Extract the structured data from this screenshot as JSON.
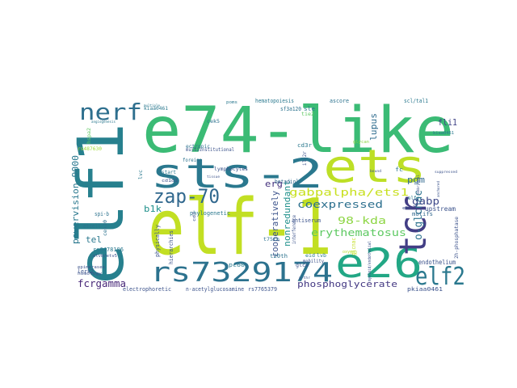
{
  "words": [
    {
      "text": "elf-1",
      "color": "#c2df23"
    },
    {
      "text": "e74-like",
      "color": "#3bbb75"
    },
    {
      "text": "elf1",
      "color": "#27808e"
    },
    {
      "text": "sts-2",
      "color": "#2a788e"
    },
    {
      "text": "ets",
      "color": "#bddf26"
    },
    {
      "text": "e26",
      "color": "#22a785"
    },
    {
      "text": "tcr",
      "color": "#433e85"
    },
    {
      "text": "rs7329174",
      "color": "#2c728e"
    },
    {
      "text": "elf2",
      "color": "#2a788e"
    },
    {
      "text": "nerf",
      "color": "#2e6f8e"
    },
    {
      "text": "zap-70",
      "color": "#31688e"
    },
    {
      "text": "gabpalpha/ets1",
      "color": "#c8e020"
    },
    {
      "text": "coexpressed",
      "color": "#2d708e"
    },
    {
      "text": "98-kda",
      "color": "#8ed645"
    },
    {
      "text": "erythematosus",
      "color": "#5ec962"
    },
    {
      "text": "o-glcnac",
      "color": "#2c728e"
    },
    {
      "text": "gabp",
      "color": "#3e4989"
    },
    {
      "text": "phosphoglycerate",
      "color": "#443983"
    },
    {
      "text": "fcrgamma",
      "color": "#482878"
    },
    {
      "text": "lupus",
      "color": "#2f6c8e"
    },
    {
      "text": "pgm",
      "color": "#31688e"
    },
    {
      "text": "fli1",
      "color": "#414487"
    },
    {
      "text": "powervision-9000",
      "color": "#2a788e"
    },
    {
      "text": "nonredundant",
      "color": "#21918c"
    },
    {
      "text": "cooperatively",
      "color": "#3b528b"
    },
    {
      "text": "b1k",
      "color": "#21918c"
    },
    {
      "text": "erg",
      "color": "#46337e"
    },
    {
      "text": "tel",
      "color": "#2a788e"
    },
    {
      "text": "endothelium",
      "color": "#3b528b"
    },
    {
      "text": "upstream",
      "color": "#3b528b"
    },
    {
      "text": "motifs",
      "color": "#31688e"
    },
    {
      "text": "sf3a120",
      "color": "#2c728e"
    },
    {
      "text": "betadiol",
      "color": "#31688e"
    },
    {
      "text": "hierarchies",
      "color": "#3b528b"
    },
    {
      "text": "phylogenetic",
      "color": "#2a788e"
    },
    {
      "text": "pc60",
      "color": "#2a788e"
    },
    {
      "text": "t20th",
      "color": "#2c728e"
    },
    {
      "text": "lymphocytes",
      "color": "#3b528b"
    },
    {
      "text": "ectropic",
      "color": "#2c728e"
    },
    {
      "text": "start",
      "color": "#2a788e"
    },
    {
      "text": "hematopoiesis",
      "color": "#2a788e"
    },
    {
      "text": "ascore",
      "color": "#2c728e"
    },
    {
      "text": "cd3r",
      "color": "#2a788e"
    },
    {
      "text": "sle",
      "color": "#2a788e"
    },
    {
      "text": "kiaa0461",
      "color": "#2a788e"
    },
    {
      "text": "scl/tal1",
      "color": "#2a788e"
    },
    {
      "text": "multiinstitutional",
      "color": "#3b528b"
    },
    {
      "text": "glycan",
      "color": "#8ed645"
    },
    {
      "text": "electrophoretic",
      "color": "#3b528b"
    },
    {
      "text": "n-acetylglucosamine",
      "color": "#3b528b"
    },
    {
      "text": "rs7765379",
      "color": "#3b528b"
    },
    {
      "text": "pkiaa0461",
      "color": "#3b528b"
    },
    {
      "text": "antiserum",
      "color": "#3b528b"
    },
    {
      "text": "2h-phosphatase",
      "color": "#3b528b"
    },
    {
      "text": "rs6478106",
      "color": "#2a788e"
    },
    {
      "text": "rs487630",
      "color": "#a0da39"
    },
    {
      "text": "spi-b",
      "color": "#2c728e"
    },
    {
      "text": "etcell",
      "color": "#2c728e"
    },
    {
      "text": "cek10",
      "color": "#2c728e"
    },
    {
      "text": "lerk2",
      "color": "#3b528b"
    },
    {
      "text": "homology",
      "color": "#3b528b"
    },
    {
      "text": "mobility",
      "color": "#3b528b"
    },
    {
      "text": "interference",
      "color": "#3b528b"
    },
    {
      "text": "elfr",
      "color": "#2a788e"
    },
    {
      "text": "glcnac",
      "color": "#c2df23"
    },
    {
      "text": "lvb",
      "color": "#2a788e"
    },
    {
      "text": "eid",
      "color": "#2a788e"
    },
    {
      "text": "physically",
      "color": "#3b528b"
    },
    {
      "text": "cek5",
      "color": "#2c728e"
    },
    {
      "text": "foreign",
      "color": "#2c728e"
    },
    {
      "text": "t75th",
      "color": "#2c728e"
    },
    {
      "text": "glce",
      "color": "#3b528b"
    },
    {
      "text": "il-2r",
      "color": "#3b528b"
    },
    {
      "text": "tie2",
      "color": "#5ec962"
    },
    {
      "text": "hspa2",
      "color": "#5ec962"
    },
    {
      "text": "epimerases",
      "color": "#3b528b"
    },
    {
      "text": "cd1d1",
      "color": "#3b528b"
    },
    {
      "text": "fc",
      "color": "#2a788e"
    },
    {
      "text": "kiaa0461",
      "color": "#2a788e"
    },
    {
      "text": "poms",
      "color": "#2a788e"
    },
    {
      "text": "lvc",
      "color": "#2a788e"
    },
    {
      "text": "bound",
      "color": "#3b528b"
    },
    {
      "text": "etvb/etv5",
      "color": "#3b528b"
    },
    {
      "text": "oxygen",
      "color": "#b5de2b"
    },
    {
      "text": "myeloid/endothelial",
      "color": "#3b528b"
    },
    {
      "text": "angiogenesis",
      "color": "#2a788e"
    },
    {
      "text": "multiple",
      "color": "#2a788e"
    },
    {
      "text": "cd7",
      "color": "#3b528b"
    },
    {
      "text": "embryonal",
      "color": "#3b528b"
    },
    {
      "text": "suppressed",
      "color": "#3b528b"
    },
    {
      "text": "ebs",
      "color": "#3b528b"
    },
    {
      "text": "tissue",
      "color": "#3b528b"
    },
    {
      "text": "anchored",
      "color": "#3b528b"
    },
    {
      "text": "p-thr",
      "color": "#3b528b"
    }
  ]
}
